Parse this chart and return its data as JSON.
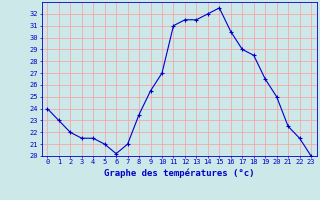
{
  "hours": [
    0,
    1,
    2,
    3,
    4,
    5,
    6,
    7,
    8,
    9,
    10,
    11,
    12,
    13,
    14,
    15,
    16,
    17,
    18,
    19,
    20,
    21,
    22,
    23
  ],
  "temps": [
    24.0,
    23.0,
    22.0,
    21.5,
    21.5,
    21.0,
    20.2,
    21.0,
    23.5,
    25.5,
    27.0,
    31.0,
    31.5,
    31.5,
    32.0,
    32.5,
    30.5,
    29.0,
    28.5,
    26.5,
    25.0,
    22.5,
    21.5,
    20.0
  ],
  "ylim": [
    20,
    33
  ],
  "yticks": [
    20,
    21,
    22,
    23,
    24,
    25,
    26,
    27,
    28,
    29,
    30,
    31,
    32
  ],
  "xlabel": "Graphe des températures (°c)",
  "line_color": "#0000cc",
  "marker_color": "#0000cc",
  "bg_color": "#cce8e8",
  "grid_color": "#ff9999",
  "axis_label_color": "#0000cc",
  "axis_tick_color": "#0000cc"
}
